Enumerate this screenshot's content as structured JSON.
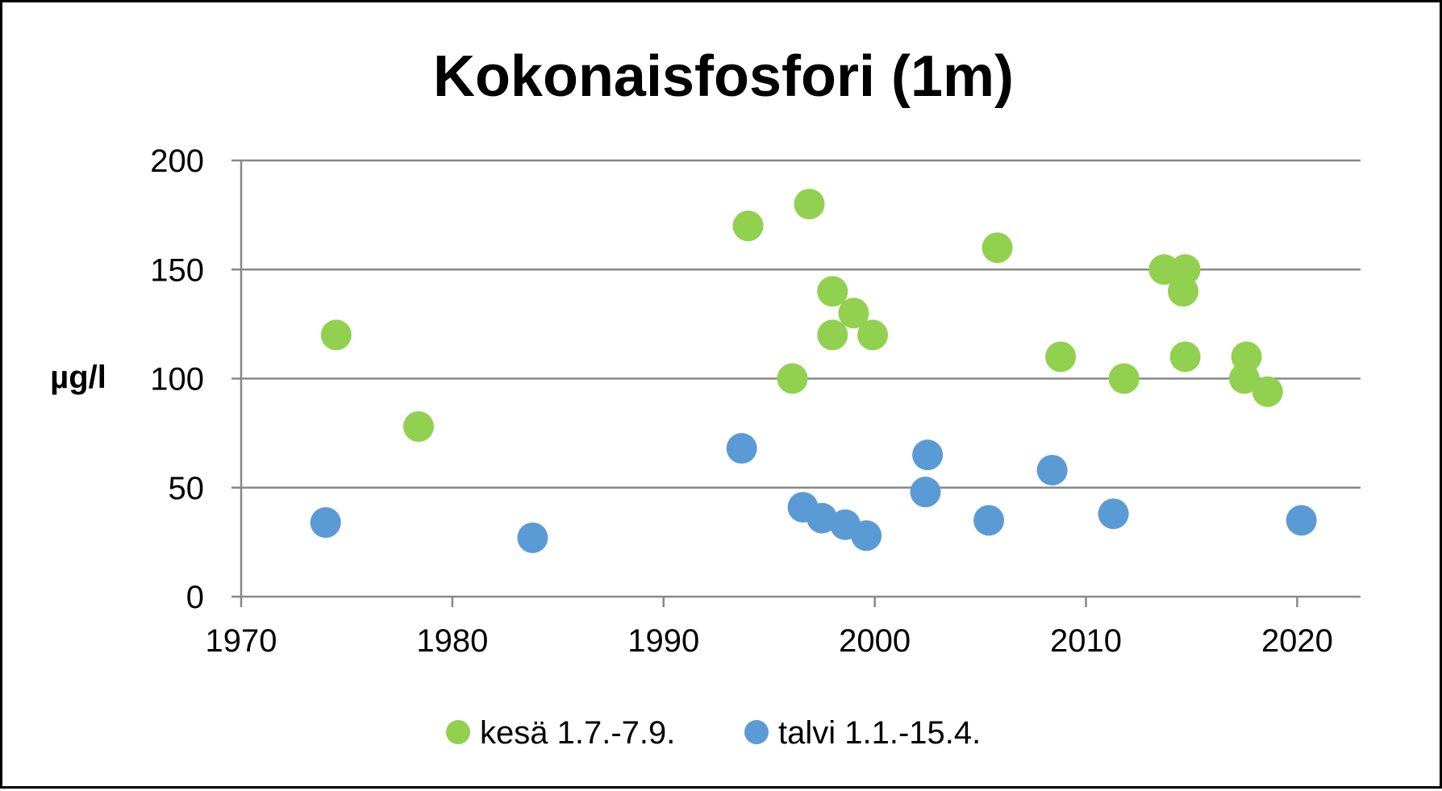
{
  "chart_data": {
    "type": "scatter",
    "title": "Kokonaisfosfori (1m)",
    "xlabel": "",
    "ylabel": "µg/l",
    "xlim": [
      1970,
      2023
    ],
    "ylim": [
      0,
      200
    ],
    "x_ticks": [
      1970,
      1980,
      1990,
      2000,
      2010,
      2020
    ],
    "y_ticks": [
      0,
      50,
      100,
      150,
      200
    ],
    "grid": "horizontal",
    "legend_position": "bottom",
    "series": [
      {
        "name": "kesä 1.7.-7.9.",
        "color": "#92d050",
        "points": [
          {
            "x": 1974.5,
            "y": 120
          },
          {
            "x": 1978.4,
            "y": 78
          },
          {
            "x": 1994.0,
            "y": 170
          },
          {
            "x": 1996.1,
            "y": 100
          },
          {
            "x": 1996.9,
            "y": 180
          },
          {
            "x": 1998.0,
            "y": 140
          },
          {
            "x": 1998.0,
            "y": 120
          },
          {
            "x": 1999.0,
            "y": 130
          },
          {
            "x": 1999.9,
            "y": 120
          },
          {
            "x": 2005.8,
            "y": 160
          },
          {
            "x": 2008.8,
            "y": 110
          },
          {
            "x": 2011.8,
            "y": 100
          },
          {
            "x": 2013.7,
            "y": 150
          },
          {
            "x": 2014.7,
            "y": 150
          },
          {
            "x": 2014.6,
            "y": 140
          },
          {
            "x": 2014.7,
            "y": 110
          },
          {
            "x": 2017.6,
            "y": 110
          },
          {
            "x": 2017.5,
            "y": 100
          },
          {
            "x": 2018.6,
            "y": 94
          }
        ]
      },
      {
        "name": "talvi 1.1.-15.4.",
        "color": "#5b9bd5",
        "points": [
          {
            "x": 1974.0,
            "y": 34
          },
          {
            "x": 1983.8,
            "y": 27
          },
          {
            "x": 1993.7,
            "y": 68
          },
          {
            "x": 1996.6,
            "y": 41
          },
          {
            "x": 1997.5,
            "y": 36
          },
          {
            "x": 1998.6,
            "y": 33
          },
          {
            "x": 1999.6,
            "y": 28
          },
          {
            "x": 2002.5,
            "y": 65
          },
          {
            "x": 2002.4,
            "y": 48
          },
          {
            "x": 2005.4,
            "y": 35
          },
          {
            "x": 2008.4,
            "y": 58
          },
          {
            "x": 2011.3,
            "y": 38
          },
          {
            "x": 2020.2,
            "y": 35
          }
        ]
      }
    ]
  }
}
